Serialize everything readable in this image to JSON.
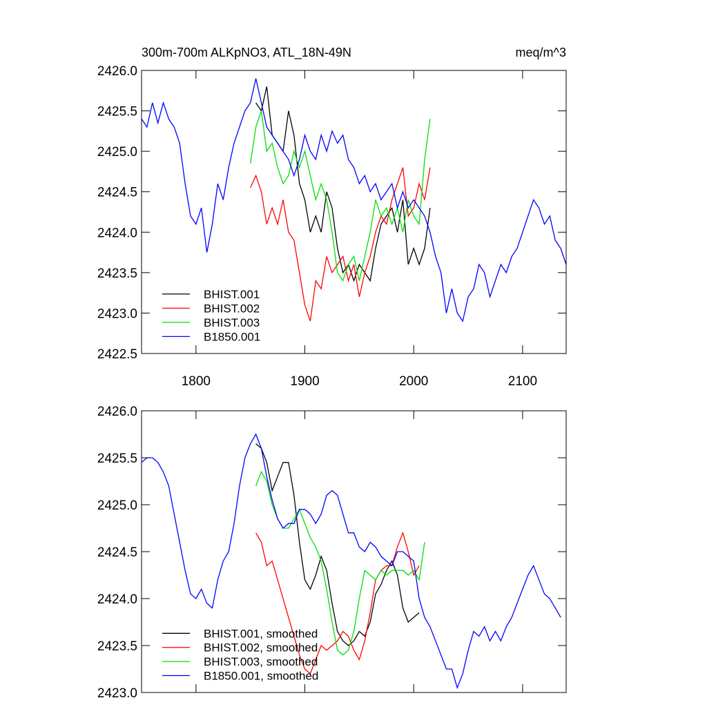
{
  "chart_data": [
    {
      "type": "line",
      "title": "300m-700m ALKpNO3, ATL_18N-49N",
      "units": "meq/m^3",
      "x": [
        1750,
        1755,
        1760,
        1765,
        1770,
        1775,
        1780,
        1785,
        1790,
        1795,
        1800,
        1805,
        1810,
        1815,
        1820,
        1825,
        1830,
        1835,
        1840,
        1845,
        1850,
        1855,
        1860,
        1865,
        1870,
        1875,
        1880,
        1885,
        1890,
        1895,
        1900,
        1905,
        1910,
        1915,
        1920,
        1925,
        1930,
        1935,
        1940,
        1945,
        1950,
        1955,
        1960,
        1965,
        1970,
        1975,
        1980,
        1985,
        1990,
        1995,
        2000,
        2005,
        2010,
        2015,
        2020,
        2025,
        2030,
        2035,
        2040,
        2045,
        2050,
        2055,
        2060,
        2065,
        2070,
        2075,
        2080,
        2085,
        2090,
        2095,
        2100,
        2105,
        2110,
        2115,
        2120,
        2125,
        2130,
        2135,
        2140
      ],
      "xlim": [
        1750,
        2140
      ],
      "xticks": [
        1800,
        1900,
        2000,
        2100
      ],
      "ylim": [
        2422.5,
        2426.0
      ],
      "yticks": [
        2422.5,
        {
          "value": 2423,
          "label": "2423.0"
        },
        2423.5,
        {
          "value": 2424,
          "label": "2424.0"
        },
        2424.5,
        {
          "value": 2425,
          "label": "2425.0"
        },
        2425.5,
        {
          "value": 2426,
          "label": "2426.0"
        }
      ],
      "legend": "lower left",
      "show_xtick_labels": true,
      "series": [
        {
          "name": "BHIST.001",
          "color": "#000000",
          "values": [
            null,
            null,
            null,
            null,
            null,
            null,
            null,
            null,
            null,
            null,
            null,
            null,
            null,
            null,
            null,
            null,
            null,
            null,
            null,
            null,
            null,
            2425.6,
            2425.5,
            2425.8,
            2425.2,
            2425.1,
            2425.0,
            2425.5,
            2425.2,
            2424.6,
            2424.4,
            2424.0,
            2424.2,
            2424.0,
            2424.5,
            2424.3,
            2423.8,
            2423.5,
            2423.6,
            2423.4,
            2423.6,
            2423.5,
            2423.4,
            2423.8,
            2424.1,
            2424.2,
            2424.3,
            2424.0,
            2424.4,
            2423.6,
            2423.8,
            2423.6,
            2423.8,
            2424.3,
            null,
            null,
            null,
            null,
            null,
            null,
            null,
            null,
            null,
            null,
            null,
            null,
            null,
            null,
            null,
            null,
            null,
            null,
            null,
            null,
            null,
            null,
            null,
            null,
            null
          ]
        },
        {
          "name": "BHIST.002",
          "color": "#ff0000",
          "values": [
            null,
            null,
            null,
            null,
            null,
            null,
            null,
            null,
            null,
            null,
            null,
            null,
            null,
            null,
            null,
            null,
            null,
            null,
            null,
            null,
            2424.55,
            2424.7,
            2424.5,
            2424.1,
            2424.3,
            2424.1,
            2424.4,
            2424.0,
            2423.9,
            2423.5,
            2423.1,
            2422.9,
            2423.4,
            2423.3,
            2423.7,
            2423.5,
            2423.6,
            2423.7,
            2423.4,
            2423.6,
            2423.2,
            2423.5,
            2423.7,
            2424.0,
            2424.2,
            2424.1,
            2424.4,
            2424.6,
            2424.8,
            2424.2,
            2424.3,
            2424.6,
            2424.4,
            2424.8,
            null,
            null,
            null,
            null,
            null,
            null,
            null,
            null,
            null,
            null,
            null,
            null,
            null,
            null,
            null,
            null,
            null,
            null,
            null,
            null,
            null,
            null,
            null,
            null,
            null
          ]
        },
        {
          "name": "BHIST.003",
          "color": "#00e000",
          "values": [
            null,
            null,
            null,
            null,
            null,
            null,
            null,
            null,
            null,
            null,
            null,
            null,
            null,
            null,
            null,
            null,
            null,
            null,
            null,
            null,
            2424.85,
            2425.3,
            2425.5,
            2425.0,
            2425.1,
            2424.8,
            2424.6,
            2424.7,
            2425.0,
            2424.8,
            2425.0,
            2424.7,
            2424.4,
            2424.6,
            2424.4,
            2424.0,
            2423.5,
            2423.4,
            2423.6,
            2423.7,
            2423.4,
            2423.7,
            2424.0,
            2424.4,
            2424.2,
            2424.3,
            2424.1,
            2424.3,
            2424.0,
            2424.4,
            2424.2,
            2424.1,
            2424.9,
            2425.4,
            null,
            null,
            null,
            null,
            null,
            null,
            null,
            null,
            null,
            null,
            null,
            null,
            null,
            null,
            null,
            null,
            null,
            null,
            null,
            null,
            null,
            null,
            null,
            null,
            null
          ]
        },
        {
          "name": "B1850.001",
          "color": "#0000ff",
          "values": [
            2425.4,
            2425.3,
            2425.6,
            2425.35,
            2425.6,
            2425.4,
            2425.3,
            2425.1,
            2424.6,
            2424.2,
            2424.1,
            2424.3,
            2423.75,
            2424.1,
            2424.6,
            2424.4,
            2424.8,
            2425.1,
            2425.3,
            2425.5,
            2425.6,
            2425.9,
            2425.6,
            2425.3,
            2425.2,
            2425.1,
            2425.0,
            2424.9,
            2424.7,
            2424.9,
            2425.2,
            2425.0,
            2424.9,
            2425.2,
            2425.0,
            2425.25,
            2425.1,
            2425.2,
            2424.9,
            2424.8,
            2424.6,
            2424.7,
            2424.5,
            2424.6,
            2424.4,
            2424.5,
            2424.6,
            2424.3,
            2424.5,
            2424.3,
            2424.4,
            2424.3,
            2424.2,
            2424.0,
            2423.7,
            2423.5,
            2423.0,
            2423.3,
            2423.0,
            2422.9,
            2423.2,
            2423.3,
            2423.6,
            2423.5,
            2423.2,
            2423.4,
            2423.6,
            2423.5,
            2423.7,
            2423.8,
            2424.0,
            2424.2,
            2424.4,
            2424.3,
            2424.1,
            2424.2,
            2423.9,
            2423.8,
            2423.6
          ]
        }
      ]
    },
    {
      "type": "line",
      "x": [
        1750,
        1755,
        1760,
        1765,
        1770,
        1775,
        1780,
        1785,
        1790,
        1795,
        1800,
        1805,
        1810,
        1815,
        1820,
        1825,
        1830,
        1835,
        1840,
        1845,
        1850,
        1855,
        1860,
        1865,
        1870,
        1875,
        1880,
        1885,
        1890,
        1895,
        1900,
        1905,
        1910,
        1915,
        1920,
        1925,
        1930,
        1935,
        1940,
        1945,
        1950,
        1955,
        1960,
        1965,
        1970,
        1975,
        1980,
        1985,
        1990,
        1995,
        2000,
        2005,
        2010,
        2015,
        2020,
        2025,
        2030,
        2035,
        2040,
        2045,
        2050,
        2055,
        2060,
        2065,
        2070,
        2075,
        2080,
        2085,
        2090,
        2095,
        2100,
        2105,
        2110,
        2115,
        2120,
        2125,
        2130,
        2135,
        2140
      ],
      "xlim": [
        1750,
        2140
      ],
      "xticks": [
        1800,
        1900,
        2000,
        2100
      ],
      "ylim": [
        2423.0,
        2426.0
      ],
      "yticks": [
        {
          "value": 2423,
          "label": "2423.0"
        },
        2423.5,
        {
          "value": 2424,
          "label": "2424.0"
        },
        2424.5,
        {
          "value": 2425,
          "label": "2425.0"
        },
        2425.5,
        {
          "value": 2426,
          "label": "2426.0"
        }
      ],
      "legend": "lower left",
      "show_xtick_labels": false,
      "series": [
        {
          "name": "BHIST.001, smoothed",
          "color": "#000000",
          "values": [
            null,
            null,
            null,
            null,
            null,
            null,
            null,
            null,
            null,
            null,
            null,
            null,
            null,
            null,
            null,
            null,
            null,
            null,
            null,
            null,
            null,
            2425.65,
            2425.6,
            2425.45,
            2425.15,
            2425.3,
            2425.45,
            2425.45,
            2425.1,
            2424.6,
            2424.2,
            2424.1,
            2424.25,
            2424.45,
            2424.3,
            2423.95,
            2423.65,
            2423.55,
            2423.5,
            2423.55,
            2423.65,
            2423.6,
            2423.75,
            2424.05,
            2424.15,
            2424.3,
            2424.4,
            2424.25,
            2423.9,
            2423.75,
            2423.8,
            2423.85,
            null,
            null,
            null,
            null,
            null,
            null,
            null,
            null,
            null,
            null,
            null,
            null,
            null,
            null,
            null,
            null,
            null,
            null,
            null,
            null,
            null,
            null,
            null,
            null,
            null,
            null,
            null
          ]
        },
        {
          "name": "BHIST.002, smoothed",
          "color": "#ff0000",
          "values": [
            null,
            null,
            null,
            null,
            null,
            null,
            null,
            null,
            null,
            null,
            null,
            null,
            null,
            null,
            null,
            null,
            null,
            null,
            null,
            null,
            null,
            2424.7,
            2424.6,
            2424.35,
            2424.4,
            2424.2,
            2424.0,
            2423.8,
            2423.6,
            2423.4,
            2423.25,
            2423.2,
            2423.35,
            2423.5,
            2423.45,
            2423.5,
            2423.55,
            2423.65,
            2423.6,
            2423.45,
            2423.35,
            2423.55,
            2423.85,
            2424.2,
            2424.3,
            2424.35,
            2424.35,
            2424.55,
            2424.7,
            2424.5,
            2424.25,
            2424.35,
            null,
            null,
            null,
            null,
            null,
            null,
            null,
            null,
            null,
            null,
            null,
            null,
            null,
            null,
            null,
            null,
            null,
            null,
            null,
            null,
            null,
            null,
            null,
            null,
            null,
            null,
            null
          ]
        },
        {
          "name": "BHIST.003, smoothed",
          "color": "#00e000",
          "values": [
            null,
            null,
            null,
            null,
            null,
            null,
            null,
            null,
            null,
            null,
            null,
            null,
            null,
            null,
            null,
            null,
            null,
            null,
            null,
            null,
            null,
            2425.2,
            2425.35,
            2425.25,
            2425.0,
            2424.85,
            2424.75,
            2424.75,
            2424.85,
            2424.95,
            2424.8,
            2424.65,
            2424.55,
            2424.4,
            2424.1,
            2423.75,
            2423.45,
            2423.4,
            2423.45,
            2423.65,
            2424.0,
            2424.3,
            2424.25,
            2424.2,
            2424.3,
            2424.25,
            2424.3,
            2424.3,
            2424.3,
            2424.25,
            2424.3,
            2424.2,
            2424.6,
            null,
            null,
            null,
            null,
            null,
            null,
            null,
            null,
            null,
            null,
            null,
            null,
            null,
            null,
            null,
            null,
            null,
            null,
            null,
            null,
            null,
            null,
            null,
            null,
            null,
            null
          ]
        },
        {
          "name": "B1850.001, smoothed",
          "color": "#0000ff",
          "values": [
            2425.45,
            2425.5,
            2425.5,
            2425.45,
            2425.35,
            2425.2,
            2424.9,
            2424.6,
            2424.3,
            2424.05,
            2424.0,
            2424.1,
            2423.95,
            2423.9,
            2424.2,
            2424.4,
            2424.5,
            2424.8,
            2425.2,
            2425.5,
            2425.65,
            2425.75,
            2425.6,
            2425.3,
            2425.05,
            2424.85,
            2424.75,
            2424.8,
            2424.8,
            2424.95,
            2424.95,
            2424.9,
            2424.8,
            2424.9,
            2425.1,
            2425.15,
            2425.1,
            2424.9,
            2424.7,
            2424.7,
            2424.55,
            2424.5,
            2424.6,
            2424.55,
            2424.45,
            2424.4,
            2424.35,
            2424.5,
            2424.5,
            2424.45,
            2424.4,
            2424.0,
            2423.8,
            2423.7,
            2423.55,
            2423.4,
            2423.25,
            2423.25,
            2423.05,
            2423.2,
            2423.45,
            2423.65,
            2423.6,
            2423.7,
            2423.55,
            2423.65,
            2423.55,
            2423.7,
            2423.8,
            2423.95,
            2424.1,
            2424.25,
            2424.35,
            2424.2,
            2424.05,
            2424.0,
            2423.9,
            2423.8,
            null
          ]
        }
      ]
    }
  ]
}
